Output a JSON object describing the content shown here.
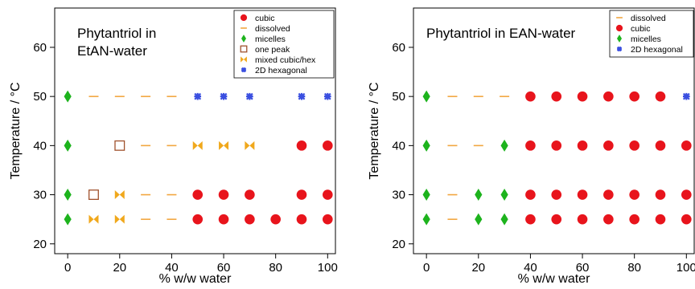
{
  "chart_data": [
    {
      "type": "scatter",
      "title": "Phytantriol in EtAN-water",
      "title_lines": [
        "Phytantriol in",
        "EtAN-water"
      ],
      "xlabel": "% w/w water",
      "ylabel": "Temperature / °C",
      "xlim": [
        -5,
        103
      ],
      "ylim": [
        18,
        68
      ],
      "xticks": [
        0,
        20,
        40,
        60,
        80,
        100
      ],
      "yticks": [
        20,
        30,
        40,
        50,
        60
      ],
      "grid": false,
      "legend_position": "top-right",
      "series": [
        {
          "name": "cubic",
          "marker": "circle",
          "color": "#e8141c",
          "points": [
            [
              50,
              30
            ],
            [
              60,
              30
            ],
            [
              70,
              30
            ],
            [
              90,
              30
            ],
            [
              100,
              30
            ],
            [
              50,
              25
            ],
            [
              60,
              25
            ],
            [
              70,
              25
            ],
            [
              80,
              25
            ],
            [
              90,
              25
            ],
            [
              100,
              25
            ],
            [
              90,
              40
            ],
            [
              100,
              40
            ]
          ]
        },
        {
          "name": "dissolved",
          "marker": "dash",
          "color": "#f2a640",
          "points": [
            [
              10,
              50
            ],
            [
              20,
              50
            ],
            [
              30,
              50
            ],
            [
              40,
              50
            ],
            [
              30,
              40
            ],
            [
              40,
              40
            ],
            [
              30,
              30
            ],
            [
              40,
              30
            ],
            [
              30,
              25
            ],
            [
              40,
              25
            ]
          ]
        },
        {
          "name": "micelles",
          "marker": "diamond",
          "color": "#1db31d",
          "points": [
            [
              0,
              50
            ],
            [
              0,
              40
            ],
            [
              0,
              30
            ],
            [
              0,
              25
            ]
          ]
        },
        {
          "name": "one peak",
          "marker": "square-open",
          "color": "#a0522d",
          "points": [
            [
              20,
              40
            ],
            [
              10,
              30
            ]
          ]
        },
        {
          "name": "mixed cubic/hex",
          "marker": "bowtie",
          "color": "#f0a81c",
          "points": [
            [
              50,
              40
            ],
            [
              60,
              40
            ],
            [
              70,
              40
            ],
            [
              20,
              30
            ],
            [
              10,
              25
            ],
            [
              20,
              25
            ]
          ]
        },
        {
          "name": "2D hexagonal",
          "marker": "star",
          "color": "#3a4fe0",
          "points": [
            [
              50,
              50
            ],
            [
              60,
              50
            ],
            [
              70,
              50
            ],
            [
              90,
              50
            ],
            [
              100,
              50
            ]
          ]
        }
      ]
    },
    {
      "type": "scatter",
      "title": "Phytantriol in EAN-water",
      "title_lines": [
        "Phytantriol in EAN-water"
      ],
      "xlabel": "% w/w water",
      "ylabel": "Temperature / °C",
      "xlim": [
        -5,
        103
      ],
      "ylim": [
        18,
        68
      ],
      "xticks": [
        0,
        20,
        40,
        60,
        80,
        100
      ],
      "yticks": [
        20,
        30,
        40,
        50,
        60
      ],
      "grid": false,
      "legend_position": "top-right",
      "series": [
        {
          "name": "dissolved",
          "marker": "dash",
          "color": "#f2a640",
          "points": [
            [
              10,
              50
            ],
            [
              20,
              50
            ],
            [
              30,
              50
            ],
            [
              10,
              40
            ],
            [
              20,
              40
            ],
            [
              10,
              30
            ],
            [
              10,
              25
            ]
          ]
        },
        {
          "name": "cubic",
          "marker": "circle",
          "color": "#e8141c",
          "points": [
            [
              40,
              50
            ],
            [
              50,
              50
            ],
            [
              60,
              50
            ],
            [
              70,
              50
            ],
            [
              80,
              50
            ],
            [
              90,
              50
            ],
            [
              40,
              40
            ],
            [
              50,
              40
            ],
            [
              60,
              40
            ],
            [
              70,
              40
            ],
            [
              80,
              40
            ],
            [
              90,
              40
            ],
            [
              100,
              40
            ],
            [
              40,
              30
            ],
            [
              50,
              30
            ],
            [
              60,
              30
            ],
            [
              70,
              30
            ],
            [
              80,
              30
            ],
            [
              90,
              30
            ],
            [
              100,
              30
            ],
            [
              40,
              25
            ],
            [
              50,
              25
            ],
            [
              60,
              25
            ],
            [
              70,
              25
            ],
            [
              80,
              25
            ],
            [
              90,
              25
            ],
            [
              100,
              25
            ]
          ]
        },
        {
          "name": "micelles",
          "marker": "diamond",
          "color": "#1db31d",
          "points": [
            [
              0,
              50
            ],
            [
              0,
              40
            ],
            [
              30,
              40
            ],
            [
              0,
              30
            ],
            [
              20,
              30
            ],
            [
              30,
              30
            ],
            [
              0,
              25
            ],
            [
              20,
              25
            ],
            [
              30,
              25
            ]
          ]
        },
        {
          "name": "2D hexagonal",
          "marker": "star",
          "color": "#3a4fe0",
          "points": [
            [
              100,
              50
            ]
          ]
        }
      ]
    }
  ]
}
